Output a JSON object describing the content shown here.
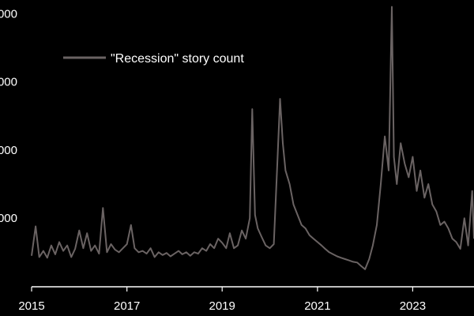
{
  "chart_data": {
    "type": "line",
    "title": "",
    "xlabel": "",
    "ylabel": "",
    "legend": {
      "position": "top-left",
      "label": "\"Recession\" story count"
    },
    "grid": false,
    "colors": {
      "background": "#000000",
      "series": "#6a6363",
      "axis": "#ffffff",
      "text": "#ffffff"
    },
    "xlim": [
      "2015-01-01",
      "2024-04-15"
    ],
    "ylim": [
      0,
      4200
    ],
    "x_ticks": [
      {
        "date": "2015-01-01",
        "label": "2015"
      },
      {
        "date": "2017-01-01",
        "label": "2017"
      },
      {
        "date": "2019-01-01",
        "label": "2019"
      },
      {
        "date": "2021-01-01",
        "label": "2021"
      },
      {
        "date": "2023-01-01",
        "label": "2023"
      }
    ],
    "y_ticks": [
      {
        "value": 1000,
        "label": "000"
      },
      {
        "value": 2000,
        "label": "000"
      },
      {
        "value": 3000,
        "label": "000"
      },
      {
        "value": 4000,
        "label": "000"
      }
    ],
    "series": [
      {
        "name": "\"Recession\" story count",
        "points": [
          [
            "2015-01-01",
            450
          ],
          [
            "2015-02-01",
            880
          ],
          [
            "2015-03-01",
            430
          ],
          [
            "2015-04-01",
            520
          ],
          [
            "2015-05-01",
            420
          ],
          [
            "2015-06-01",
            600
          ],
          [
            "2015-07-01",
            470
          ],
          [
            "2015-08-01",
            650
          ],
          [
            "2015-09-01",
            520
          ],
          [
            "2015-10-01",
            600
          ],
          [
            "2015-11-01",
            430
          ],
          [
            "2015-12-01",
            550
          ],
          [
            "2016-01-01",
            820
          ],
          [
            "2016-02-01",
            560
          ],
          [
            "2016-03-01",
            780
          ],
          [
            "2016-04-01",
            520
          ],
          [
            "2016-05-01",
            600
          ],
          [
            "2016-06-01",
            480
          ],
          [
            "2016-07-01",
            1150
          ],
          [
            "2016-08-01",
            500
          ],
          [
            "2016-09-01",
            620
          ],
          [
            "2016-10-01",
            540
          ],
          [
            "2016-11-01",
            500
          ],
          [
            "2016-12-01",
            560
          ],
          [
            "2017-01-01",
            620
          ],
          [
            "2017-02-01",
            900
          ],
          [
            "2017-03-01",
            560
          ],
          [
            "2017-04-01",
            500
          ],
          [
            "2017-05-01",
            520
          ],
          [
            "2017-06-01",
            480
          ],
          [
            "2017-07-01",
            560
          ],
          [
            "2017-08-01",
            430
          ],
          [
            "2017-09-01",
            500
          ],
          [
            "2017-10-01",
            460
          ],
          [
            "2017-11-01",
            490
          ],
          [
            "2017-12-01",
            440
          ],
          [
            "2018-01-01",
            480
          ],
          [
            "2018-02-01",
            520
          ],
          [
            "2018-03-01",
            470
          ],
          [
            "2018-04-01",
            500
          ],
          [
            "2018-05-01",
            450
          ],
          [
            "2018-06-01",
            500
          ],
          [
            "2018-07-01",
            480
          ],
          [
            "2018-08-01",
            560
          ],
          [
            "2018-09-01",
            520
          ],
          [
            "2018-10-01",
            620
          ],
          [
            "2018-11-01",
            560
          ],
          [
            "2018-12-01",
            700
          ],
          [
            "2019-01-01",
            640
          ],
          [
            "2019-02-01",
            560
          ],
          [
            "2019-03-01",
            780
          ],
          [
            "2019-04-01",
            560
          ],
          [
            "2019-05-01",
            600
          ],
          [
            "2019-06-01",
            820
          ],
          [
            "2019-07-01",
            700
          ],
          [
            "2019-08-01",
            1000
          ],
          [
            "2019-08-20",
            2600
          ],
          [
            "2019-09-10",
            1050
          ],
          [
            "2019-10-01",
            850
          ],
          [
            "2019-11-01",
            720
          ],
          [
            "2019-12-01",
            600
          ],
          [
            "2020-01-01",
            560
          ],
          [
            "2020-02-01",
            620
          ],
          [
            "2020-03-01",
            1900
          ],
          [
            "2020-03-20",
            2750
          ],
          [
            "2020-04-10",
            2100
          ],
          [
            "2020-05-01",
            1700
          ],
          [
            "2020-06-01",
            1500
          ],
          [
            "2020-07-01",
            1200
          ],
          [
            "2020-08-01",
            1050
          ],
          [
            "2020-09-01",
            900
          ],
          [
            "2020-10-01",
            850
          ],
          [
            "2020-11-01",
            750
          ],
          [
            "2020-12-01",
            700
          ],
          [
            "2021-01-01",
            650
          ],
          [
            "2021-02-01",
            600
          ],
          [
            "2021-03-01",
            550
          ],
          [
            "2021-04-01",
            500
          ],
          [
            "2021-05-01",
            470
          ],
          [
            "2021-06-01",
            440
          ],
          [
            "2021-07-01",
            420
          ],
          [
            "2021-08-01",
            400
          ],
          [
            "2021-09-01",
            380
          ],
          [
            "2021-10-01",
            360
          ],
          [
            "2021-11-01",
            350
          ],
          [
            "2021-12-01",
            300
          ],
          [
            "2022-01-01",
            250
          ],
          [
            "2022-02-01",
            400
          ],
          [
            "2022-03-01",
            600
          ],
          [
            "2022-04-01",
            900
          ],
          [
            "2022-05-01",
            1500
          ],
          [
            "2022-06-01",
            2200
          ],
          [
            "2022-07-01",
            1700
          ],
          [
            "2022-07-25",
            4100
          ],
          [
            "2022-08-10",
            1900
          ],
          [
            "2022-09-01",
            1500
          ],
          [
            "2022-10-01",
            2100
          ],
          [
            "2022-11-01",
            1800
          ],
          [
            "2022-12-01",
            1600
          ],
          [
            "2023-01-01",
            1900
          ],
          [
            "2023-02-01",
            1400
          ],
          [
            "2023-03-01",
            1700
          ],
          [
            "2023-04-01",
            1300
          ],
          [
            "2023-05-01",
            1500
          ],
          [
            "2023-06-01",
            1200
          ],
          [
            "2023-07-01",
            1100
          ],
          [
            "2023-08-01",
            900
          ],
          [
            "2023-09-01",
            950
          ],
          [
            "2023-10-01",
            850
          ],
          [
            "2023-11-01",
            700
          ],
          [
            "2023-12-01",
            650
          ],
          [
            "2024-01-01",
            550
          ],
          [
            "2024-02-01",
            1000
          ],
          [
            "2024-03-01",
            600
          ],
          [
            "2024-04-01",
            1400
          ],
          [
            "2024-04-15",
            700
          ]
        ]
      }
    ]
  }
}
